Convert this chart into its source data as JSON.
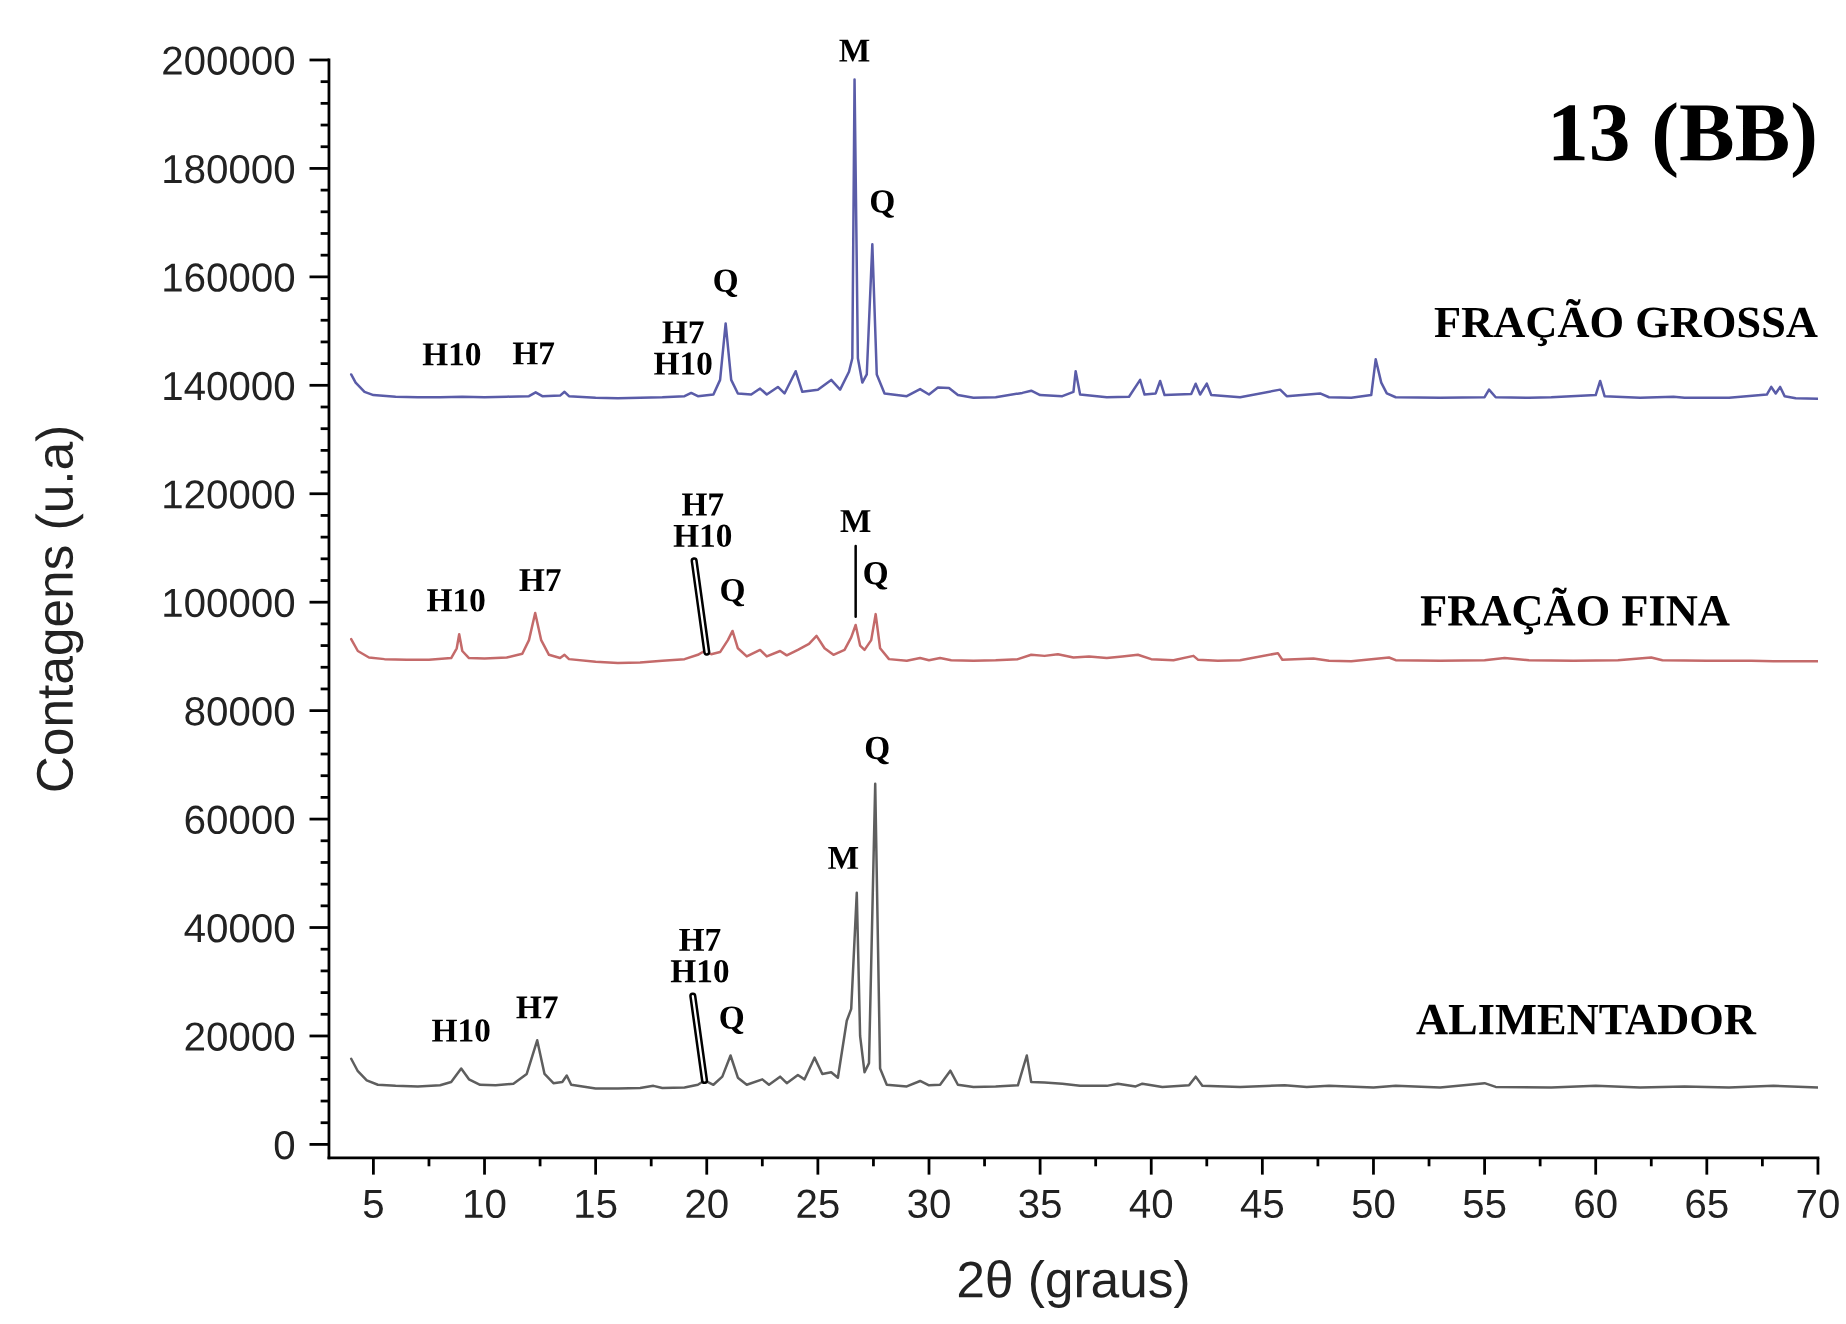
{
  "chart_data": {
    "type": "line",
    "title": "13 (BB)",
    "xlabel": "2θ (graus)",
    "ylabel": "Contagens (u.a)",
    "xlim": [
      3,
      70
    ],
    "ylim": [
      -2500,
      200000
    ],
    "xticks": [
      5,
      10,
      15,
      20,
      25,
      30,
      35,
      40,
      45,
      50,
      55,
      60,
      65,
      70
    ],
    "yticks": [
      0,
      20000,
      40000,
      60000,
      80000,
      100000,
      120000,
      140000,
      160000,
      180000,
      200000
    ],
    "grid": false,
    "legend": false,
    "marker": "none",
    "line_style": "solid",
    "series": [
      {
        "name": "FRAÇÃO GROSSA",
        "color": "#5a5ca8",
        "x": [
          4.0,
          4.2,
          4.6,
          5.0,
          6,
          7,
          8,
          9,
          10,
          11,
          12.0,
          12.3,
          12.6,
          13.4,
          13.6,
          13.8,
          15,
          16,
          17,
          18,
          19.0,
          19.3,
          19.6,
          20.3,
          20.6,
          20.85,
          21.1,
          21.4,
          22.0,
          22.4,
          22.7,
          23.2,
          23.5,
          24.0,
          24.3,
          25.0,
          25.6,
          26.0,
          26.4,
          26.55,
          26.65,
          26.8,
          27.0,
          27.2,
          27.45,
          27.65,
          28.0,
          29,
          29.6,
          30.0,
          30.4,
          30.9,
          31.3,
          32,
          33,
          34.2,
          34.6,
          35.0,
          36.0,
          36.5,
          36.6,
          36.8,
          38,
          39.0,
          39.5,
          39.7,
          40.2,
          40.4,
          40.6,
          41.8,
          42.0,
          42.2,
          42.5,
          42.7,
          44,
          45.8,
          46.1,
          47.6,
          48,
          49,
          49.9,
          50.1,
          50.35,
          50.6,
          51,
          53,
          55.0,
          55.2,
          55.5,
          57,
          58,
          60.0,
          60.2,
          60.4,
          62,
          63.5,
          64,
          66,
          67.7,
          67.9,
          68.1,
          68.3,
          68.5,
          69,
          70
        ],
        "values": [
          142000,
          140500,
          138800,
          138200,
          137900,
          137800,
          137800,
          137900,
          137800,
          137900,
          138000,
          138700,
          138000,
          138100,
          138800,
          138000,
          137700,
          137600,
          137700,
          137800,
          138000,
          138600,
          138000,
          138300,
          141000,
          151400,
          141000,
          138500,
          138300,
          139400,
          138300,
          139700,
          138500,
          142600,
          138800,
          139200,
          141000,
          139200,
          142500,
          145000,
          196400,
          145000,
          140500,
          142000,
          166000,
          142000,
          138500,
          138000,
          139300,
          138300,
          139600,
          139500,
          138200,
          137700,
          137800,
          138600,
          139000,
          138200,
          138000,
          138800,
          142600,
          138300,
          137800,
          137900,
          141000,
          138300,
          138500,
          140800,
          138200,
          138400,
          140300,
          138300,
          140300,
          138200,
          137800,
          139200,
          138000,
          138500,
          137800,
          137700,
          138200,
          144800,
          140500,
          138500,
          137800,
          137700,
          137800,
          139200,
          137800,
          137700,
          137800,
          138200,
          140800,
          138000,
          137700,
          137900,
          137700,
          137700,
          138300,
          139700,
          138500,
          139700,
          138000,
          137600,
          137500
        ]
      },
      {
        "name": "FRAÇÃO FINA",
        "color": "#c46a6a",
        "x": [
          4.0,
          4.3,
          4.8,
          5.5,
          6.5,
          7.5,
          8.5,
          8.75,
          8.86,
          9.0,
          9.3,
          10,
          11,
          11.7,
          12.0,
          12.28,
          12.55,
          12.9,
          13.4,
          13.6,
          13.8,
          15,
          16,
          17,
          18,
          19.0,
          19.6,
          19.9,
          20.2,
          20.6,
          20.95,
          21.16,
          21.4,
          21.8,
          22.4,
          22.7,
          23.3,
          23.6,
          24.1,
          24.6,
          24.94,
          25.3,
          25.7,
          26.2,
          26.5,
          26.7,
          26.9,
          27.1,
          27.4,
          27.6,
          27.8,
          28.2,
          29,
          29.6,
          30,
          30.5,
          31,
          32,
          33,
          34,
          34.6,
          35.2,
          35.8,
          36.5,
          37.2,
          38,
          38.7,
          39.4,
          40,
          41,
          41.9,
          42.1,
          43,
          44,
          45.7,
          45.9,
          47.3,
          48,
          49,
          50.7,
          51,
          53,
          55,
          55.9,
          57,
          59,
          61,
          62.5,
          63,
          65,
          67,
          68,
          70
        ],
        "values": [
          93200,
          91000,
          89800,
          89500,
          89400,
          89400,
          89700,
          91500,
          94100,
          91000,
          89700,
          89600,
          89800,
          90500,
          93000,
          98000,
          93000,
          90300,
          89700,
          90300,
          89500,
          89000,
          88800,
          88900,
          89200,
          89500,
          90300,
          91000,
          90400,
          90800,
          93000,
          94700,
          91500,
          90000,
          91200,
          90000,
          91000,
          90200,
          91200,
          92300,
          93800,
          91500,
          90300,
          91200,
          93500,
          95800,
          92000,
          91200,
          93000,
          97800,
          91500,
          89500,
          89200,
          89700,
          89300,
          89700,
          89300,
          89200,
          89300,
          89500,
          90300,
          90100,
          90400,
          89800,
          90000,
          89700,
          90000,
          90300,
          89500,
          89300,
          90100,
          89400,
          89200,
          89300,
          90600,
          89400,
          89600,
          89200,
          89100,
          89800,
          89300,
          89200,
          89300,
          89700,
          89300,
          89200,
          89300,
          89800,
          89300,
          89200,
          89200,
          89100,
          89100
        ]
      },
      {
        "name": "ALIMENTADOR",
        "color": "#5e5e5e",
        "x": [
          4.0,
          4.3,
          4.7,
          5.2,
          6,
          7,
          8.0,
          8.5,
          8.95,
          9.3,
          9.8,
          10.5,
          11.3,
          11.9,
          12.37,
          12.7,
          13.1,
          13.5,
          13.7,
          13.9,
          15,
          16,
          17,
          17.6,
          18,
          19,
          19.6,
          19.9,
          20.3,
          20.7,
          21.07,
          21.4,
          21.8,
          22.5,
          22.8,
          23.3,
          23.6,
          24.1,
          24.4,
          24.85,
          25.2,
          25.6,
          25.9,
          26.3,
          26.5,
          26.75,
          26.9,
          27.1,
          27.3,
          27.58,
          27.8,
          28.1,
          29,
          29.6,
          30.0,
          30.5,
          30.96,
          31.3,
          32,
          33,
          34.0,
          34.4,
          34.6,
          35.2,
          36,
          36.8,
          38,
          38.5,
          39.3,
          39.6,
          40.5,
          41.7,
          42.0,
          42.3,
          44,
          46,
          47,
          48,
          50,
          51,
          53,
          55.0,
          55.5,
          58,
          60,
          62,
          64,
          66,
          68,
          70
        ],
        "values": [
          15800,
          13500,
          11800,
          11000,
          10800,
          10700,
          10900,
          11500,
          14000,
          12000,
          11000,
          10900,
          11200,
          13000,
          19200,
          13000,
          11300,
          11500,
          12700,
          11000,
          10300,
          10300,
          10400,
          10800,
          10400,
          10500,
          11000,
          11800,
          11000,
          12500,
          16400,
          12300,
          11000,
          12000,
          11000,
          12500,
          11300,
          12800,
          12000,
          16000,
          13000,
          13300,
          12300,
          22800,
          25000,
          46400,
          20000,
          13300,
          15000,
          66500,
          14000,
          11000,
          10700,
          11700,
          10900,
          11000,
          13600,
          11000,
          10600,
          10700,
          10900,
          16400,
          11500,
          11400,
          11200,
          10800,
          10800,
          11200,
          10700,
          11200,
          10600,
          10900,
          12500,
          10800,
          10600,
          10900,
          10600,
          10800,
          10500,
          10800,
          10500,
          11300,
          10600,
          10500,
          10800,
          10500,
          10700,
          10500,
          10800,
          10500
        ]
      }
    ],
    "annotations": [
      {
        "text": "H10",
        "x": 8.8,
        "y": 137800
      },
      {
        "text": "H7",
        "x": 12.3,
        "y": 138700
      },
      {
        "text": "H7\nH10",
        "x": 19.3,
        "y": 138600
      },
      {
        "text": "Q",
        "x": 20.85,
        "y": 151400
      },
      {
        "text": "M",
        "x": 26.65,
        "y": 196400
      },
      {
        "text": "Q",
        "x": 27.45,
        "y": 166000
      },
      {
        "text": "H10",
        "x": 8.86,
        "y": 94100
      },
      {
        "text": "H7",
        "x": 12.28,
        "y": 98000
      },
      {
        "text": "H7\nH10",
        "x": 20.0,
        "y": 90800
      },
      {
        "text": "Q",
        "x": 21.16,
        "y": 94700
      },
      {
        "text": "M",
        "x": 26.7,
        "y": 95800
      },
      {
        "text": "Q",
        "x": 27.6,
        "y": 97800
      },
      {
        "text": "H10",
        "x": 8.95,
        "y": 14000
      },
      {
        "text": "H7",
        "x": 12.37,
        "y": 19200
      },
      {
        "text": "H7\nH10",
        "x": 19.9,
        "y": 11800
      },
      {
        "text": "Q",
        "x": 21.07,
        "y": 16400
      },
      {
        "text": "M",
        "x": 26.75,
        "y": 46400
      },
      {
        "text": "Q",
        "x": 27.58,
        "y": 66500
      }
    ]
  }
}
